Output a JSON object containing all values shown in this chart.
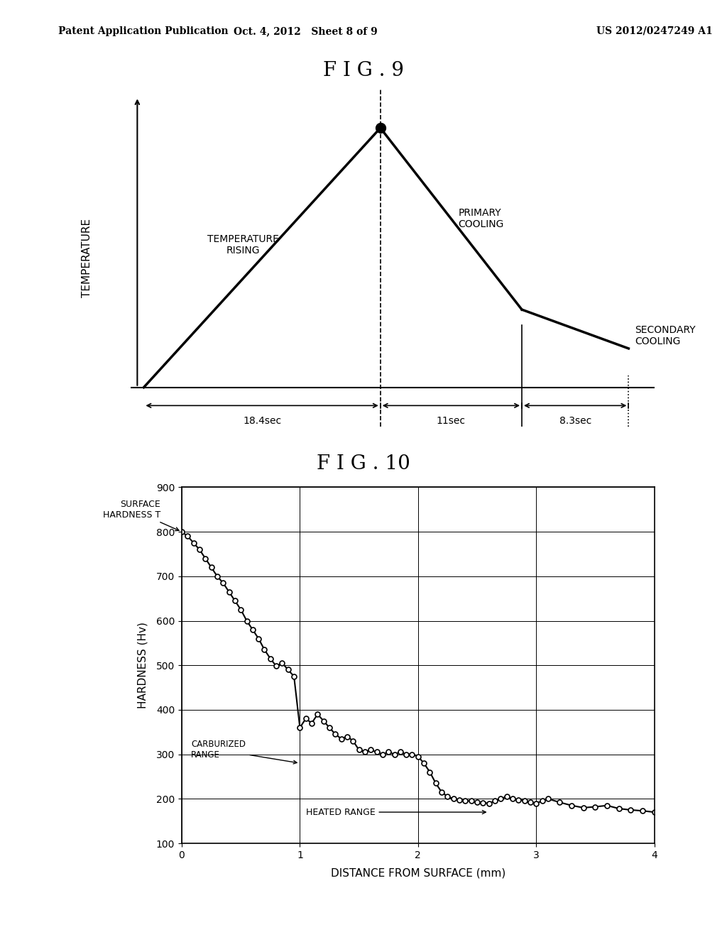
{
  "header_left": "Patent Application Publication",
  "header_mid": "Oct. 4, 2012   Sheet 8 of 9",
  "header_right": "US 2012/0247249 A1",
  "fig9_title": "F I G . 9",
  "fig10_title": "F I G . 10",
  "fig9_ylabel": "TEMPERATURE",
  "fig9_annotations": {
    "temp_rising": "TEMPERATURE\nRISING",
    "primary_cooling": "PRIMARY\nCOOLING",
    "secondary_cooling": "SECONDARY\nCOOLING",
    "t1": "18.4sec",
    "t2": "11sec",
    "t3": "8.3sec"
  },
  "fig10_xlabel": "DISTANCE FROM SURFACE (mm)",
  "fig10_ylabel": "HARDNESS (Hv)",
  "fig10_yticks": [
    100,
    200,
    300,
    400,
    500,
    600,
    700,
    800,
    900
  ],
  "fig10_xticks": [
    0.0,
    1.0,
    2.0,
    3.0,
    4.0
  ],
  "fig10_ylim": [
    100,
    900
  ],
  "fig10_xlim": [
    0.0,
    4.0
  ],
  "surface_hardness_label": "SURFACE\nHARDNESS T",
  "carburized_label": "CARBURIZED\nRANGE",
  "heated_label": "HEATED RANGE",
  "hardness_data_x": [
    0.0,
    0.05,
    0.1,
    0.15,
    0.2,
    0.25,
    0.3,
    0.35,
    0.4,
    0.45,
    0.5,
    0.55,
    0.6,
    0.65,
    0.7,
    0.75,
    0.8,
    0.85,
    0.9,
    0.95,
    1.0,
    1.05,
    1.1,
    1.15,
    1.2,
    1.25,
    1.3,
    1.35,
    1.4,
    1.45,
    1.5,
    1.55,
    1.6,
    1.65,
    1.7,
    1.75,
    1.8,
    1.85,
    1.9,
    1.95,
    2.0,
    2.05,
    2.1,
    2.15,
    2.2,
    2.25,
    2.3,
    2.35,
    2.4,
    2.45,
    2.5,
    2.55,
    2.6,
    2.65,
    2.7,
    2.75,
    2.8,
    2.85,
    2.9,
    2.95,
    3.0,
    3.05,
    3.1,
    3.2,
    3.3,
    3.4,
    3.5,
    3.6,
    3.7,
    3.8,
    3.9,
    4.0
  ],
  "hardness_data_y": [
    800,
    790,
    775,
    760,
    740,
    720,
    700,
    685,
    665,
    645,
    625,
    600,
    580,
    560,
    535,
    515,
    498,
    505,
    490,
    475,
    360,
    380,
    370,
    390,
    375,
    360,
    345,
    335,
    340,
    330,
    310,
    305,
    310,
    305,
    300,
    305,
    300,
    305,
    300,
    300,
    295,
    280,
    260,
    235,
    215,
    205,
    200,
    198,
    196,
    195,
    193,
    191,
    190,
    195,
    200,
    205,
    200,
    198,
    196,
    192,
    190,
    195,
    200,
    192,
    185,
    180,
    182,
    185,
    178,
    175,
    173,
    170
  ],
  "background_color": "#ffffff",
  "line_color": "#000000"
}
